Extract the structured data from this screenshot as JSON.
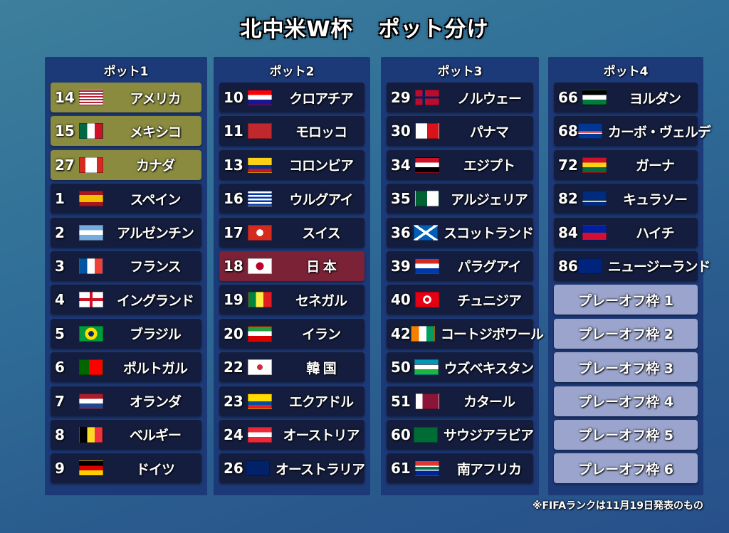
{
  "title": {
    "main": "北中米W杯",
    "sub": "ポット分け"
  },
  "pots": [
    {
      "label": "ポット1",
      "teams": [
        {
          "rank": "14",
          "name": "アメリカ",
          "flag": "usa",
          "host": true
        },
        {
          "rank": "15",
          "name": "メキシコ",
          "flag": "mex",
          "host": true
        },
        {
          "rank": "27",
          "name": "カナダ",
          "flag": "can",
          "host": true
        },
        {
          "rank": "1",
          "name": "スペイン",
          "flag": "esp"
        },
        {
          "rank": "2",
          "name": "アルゼンチン",
          "flag": "arg"
        },
        {
          "rank": "3",
          "name": "フランス",
          "flag": "fra"
        },
        {
          "rank": "4",
          "name": "イングランド",
          "flag": "eng"
        },
        {
          "rank": "5",
          "name": "ブラジル",
          "flag": "bra"
        },
        {
          "rank": "6",
          "name": "ポルトガル",
          "flag": "por"
        },
        {
          "rank": "7",
          "name": "オランダ",
          "flag": "ned"
        },
        {
          "rank": "8",
          "name": "ベルギー",
          "flag": "bel"
        },
        {
          "rank": "9",
          "name": "ドイツ",
          "flag": "ger"
        }
      ]
    },
    {
      "label": "ポット2",
      "teams": [
        {
          "rank": "10",
          "name": "クロアチア",
          "flag": "cro"
        },
        {
          "rank": "11",
          "name": "モロッコ",
          "flag": "mar"
        },
        {
          "rank": "13",
          "name": "コロンビア",
          "flag": "col"
        },
        {
          "rank": "16",
          "name": "ウルグアイ",
          "flag": "uru"
        },
        {
          "rank": "17",
          "name": "スイス",
          "flag": "sui"
        },
        {
          "rank": "18",
          "name": "日 本",
          "flag": "jpn",
          "highlight": true
        },
        {
          "rank": "19",
          "name": "セネガル",
          "flag": "sen"
        },
        {
          "rank": "20",
          "name": "イラン",
          "flag": "irn"
        },
        {
          "rank": "22",
          "name": "韓 国",
          "flag": "kor"
        },
        {
          "rank": "23",
          "name": "エクアドル",
          "flag": "ecu"
        },
        {
          "rank": "24",
          "name": "オーストリア",
          "flag": "aut"
        },
        {
          "rank": "26",
          "name": "オーストラリア",
          "flag": "aus"
        }
      ]
    },
    {
      "label": "ポット3",
      "teams": [
        {
          "rank": "29",
          "name": "ノルウェー",
          "flag": "nor"
        },
        {
          "rank": "30",
          "name": "パナマ",
          "flag": "pan"
        },
        {
          "rank": "34",
          "name": "エジプト",
          "flag": "egy"
        },
        {
          "rank": "35",
          "name": "アルジェリア",
          "flag": "alg"
        },
        {
          "rank": "36",
          "name": "スコットランド",
          "flag": "sco"
        },
        {
          "rank": "39",
          "name": "パラグアイ",
          "flag": "par"
        },
        {
          "rank": "40",
          "name": "チュニジア",
          "flag": "tun"
        },
        {
          "rank": "42",
          "name": "コートジボワール",
          "flag": "civ"
        },
        {
          "rank": "50",
          "name": "ウズベキスタン",
          "flag": "uzb"
        },
        {
          "rank": "51",
          "name": "カタール",
          "flag": "qat"
        },
        {
          "rank": "60",
          "name": "サウジアラビア",
          "flag": "ksa"
        },
        {
          "rank": "61",
          "name": "南アフリカ",
          "flag": "rsa"
        }
      ]
    },
    {
      "label": "ポット4",
      "teams": [
        {
          "rank": "66",
          "name": "ヨルダン",
          "flag": "jor"
        },
        {
          "rank": "68",
          "name": "カーボ・ヴェルデ",
          "flag": "cpv"
        },
        {
          "rank": "72",
          "name": "ガーナ",
          "flag": "gha"
        },
        {
          "rank": "82",
          "name": "キュラソー",
          "flag": "cuw"
        },
        {
          "rank": "84",
          "name": "ハイチ",
          "flag": "hai"
        },
        {
          "rank": "86",
          "name": "ニュージーランド",
          "flag": "nzl"
        },
        {
          "name": "プレーオフ枠 1",
          "playoff": true
        },
        {
          "name": "プレーオフ枠 2",
          "playoff": true
        },
        {
          "name": "プレーオフ枠 3",
          "playoff": true
        },
        {
          "name": "プレーオフ枠 4",
          "playoff": true
        },
        {
          "name": "プレーオフ枠 5",
          "playoff": true
        },
        {
          "name": "プレーオフ枠 6",
          "playoff": true
        }
      ]
    }
  ],
  "note": "※FIFAランクは11月19日発表のもの",
  "colors": {
    "host_row": "#8a8b3e",
    "japan_row": "#7b2237",
    "playoff_row": "#9aa4cc",
    "team_row": "#141d3d",
    "panel": "#1d3a78"
  }
}
